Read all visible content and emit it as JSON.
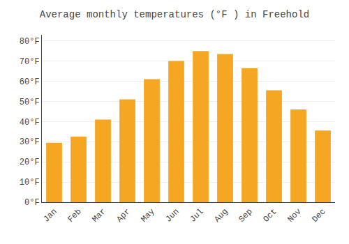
{
  "chart_data": {
    "type": "bar",
    "title": "Average monthly temperatures (°F ) in Freehold",
    "categories": [
      "Jan",
      "Feb",
      "Mar",
      "Apr",
      "May",
      "Jun",
      "Jul",
      "Aug",
      "Sep",
      "Oct",
      "Nov",
      "Dec"
    ],
    "values": [
      29.5,
      32.5,
      41.0,
      51.0,
      61.0,
      70.0,
      75.0,
      73.5,
      66.5,
      55.5,
      46.0,
      35.5
    ],
    "color": "#F5A623",
    "ylim": [
      0,
      83
    ],
    "yticks": [
      {
        "value": 0,
        "label": "0°F"
      },
      {
        "value": 10,
        "label": "10°F"
      },
      {
        "value": 20,
        "label": "20°F"
      },
      {
        "value": 30,
        "label": "30°F"
      },
      {
        "value": 40,
        "label": "40°F"
      },
      {
        "value": 50,
        "label": "50°F"
      },
      {
        "value": 60,
        "label": "60°F"
      },
      {
        "value": 70,
        "label": "70°F"
      },
      {
        "value": 80,
        "label": "80°F"
      }
    ],
    "grid": true
  }
}
